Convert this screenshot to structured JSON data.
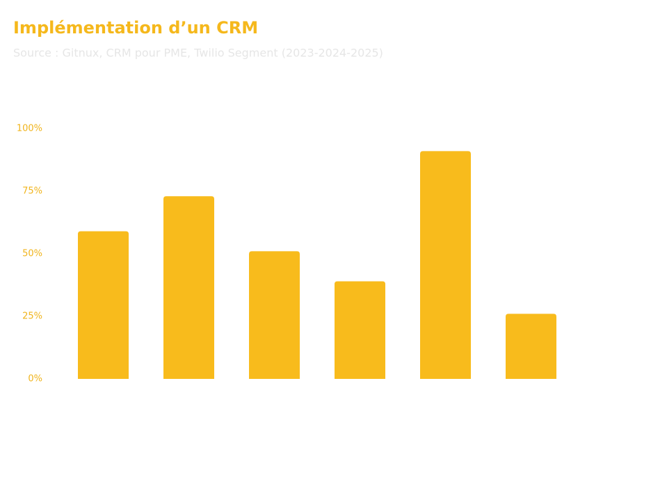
{
  "chart_data": {
    "type": "bar",
    "title": "Implémentation d’un CRM",
    "subtitle": "Source : Gitnux, CRM pour PME, Twilio Segment (2023-2024-2025)",
    "categories": [
      null,
      null,
      null,
      null,
      null,
      null
    ],
    "values": [
      59,
      73,
      51,
      39,
      91,
      26
    ],
    "color": "#f8bb1c",
    "ylim": [
      0,
      100
    ],
    "yticks": [
      {
        "value": 0,
        "label": "0%"
      },
      {
        "value": 25,
        "label": "25%"
      },
      {
        "value": 50,
        "label": "50%"
      },
      {
        "value": 75,
        "label": "75%"
      },
      {
        "value": 100,
        "label": "100%"
      }
    ],
    "grid": false
  }
}
